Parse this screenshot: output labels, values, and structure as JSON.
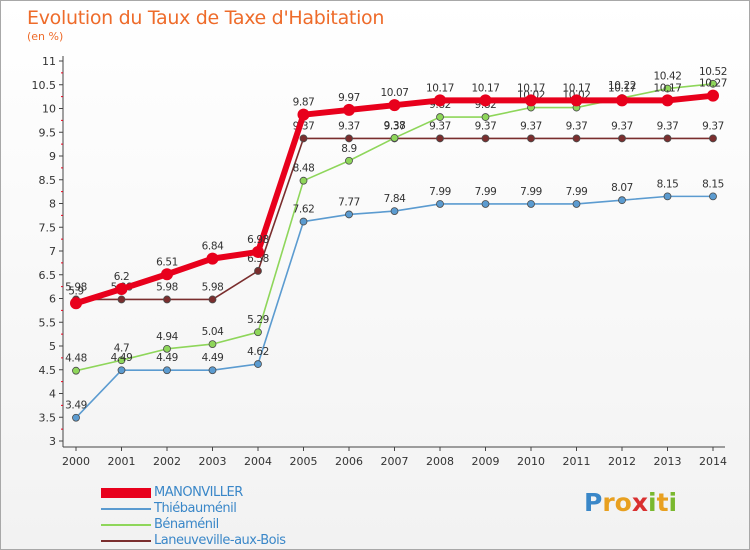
{
  "title": "Evolution du Taux de Taxe d'Habitation",
  "unit_label": "(en %)",
  "logo": {
    "letters": [
      "P",
      "r",
      "o",
      "x",
      "i",
      "t",
      "i"
    ],
    "colors": [
      "#3a87c8",
      "#e8a020",
      "#e8a020",
      "#d93030",
      "#7ab82e",
      "#e8a020",
      "#7ab82e"
    ]
  },
  "chart_data": {
    "type": "line",
    "title": "Evolution du Taux de Taxe d'Habitation",
    "ylabel": "(en %)",
    "xlabel": "",
    "x": [
      "2000",
      "2001",
      "2002",
      "2003",
      "2004",
      "2005",
      "2006",
      "2007",
      "2008",
      "2009",
      "2010",
      "2011",
      "2012",
      "2013",
      "2014"
    ],
    "ylim": [
      3,
      11
    ],
    "yticks": [
      "3",
      "3.5",
      "4",
      "4.5",
      "5",
      "5.5",
      "6",
      "6.5",
      "7",
      "7.5",
      "8",
      "8.5",
      "9",
      "9.5",
      "10",
      "10.5",
      "11"
    ],
    "grid": false,
    "legend": "bottom-left",
    "series": [
      {
        "name": "Laneuveville-aux-Bois",
        "color": "#7a2e2e",
        "values": [
          5.98,
          5.98,
          5.98,
          5.98,
          6.58,
          9.37,
          9.37,
          9.37,
          9.37,
          9.37,
          9.37,
          9.37,
          9.37,
          9.37,
          9.37
        ],
        "labels": [
          "5.98",
          "5.98",
          "5.98",
          "5.98",
          "6.58",
          "9.37",
          "9.37",
          "9.37",
          "9.37",
          "9.37",
          "9.37",
          "9.37",
          "9.37",
          "9.37",
          "9.37"
        ]
      },
      {
        "name": "Bénaménil",
        "color": "#8ed65a",
        "values": [
          4.48,
          4.7,
          4.94,
          5.04,
          5.29,
          8.48,
          8.9,
          9.38,
          9.82,
          9.82,
          10.02,
          10.02,
          10.22,
          10.42,
          10.52
        ],
        "labels": [
          "4.48",
          "4.7",
          "4.94",
          "5.04",
          "5.29",
          "8.48",
          "8.9",
          "9.38",
          "9.82",
          "9.82",
          "10.02",
          "10.02",
          "10.22",
          "10.42",
          "10.52"
        ]
      },
      {
        "name": "Thiébauménil",
        "color": "#5b9bd0",
        "values": [
          3.49,
          4.49,
          4.49,
          4.49,
          4.62,
          7.62,
          7.77,
          7.84,
          7.99,
          7.99,
          7.99,
          7.99,
          8.07,
          8.15,
          8.15
        ],
        "labels": [
          "3.49",
          "4.49",
          "4.49",
          "4.49",
          "4.62",
          "7.62",
          "7.77",
          "7.84",
          "7.99",
          "7.99",
          "7.99",
          "7.99",
          "8.07",
          "8.15",
          "8.15"
        ]
      },
      {
        "name": "MANONVILLER",
        "color": "#e8001c",
        "values": [
          5.9,
          6.2,
          6.51,
          6.84,
          6.98,
          9.87,
          9.97,
          10.07,
          10.17,
          10.17,
          10.17,
          10.17,
          10.17,
          10.17,
          10.27
        ],
        "labels": [
          "5.9",
          "6.2",
          "6.51",
          "6.84",
          "6.98",
          "9.87",
          "9.97",
          "10.07",
          "10.17",
          "10.17",
          "10.17",
          "10.17",
          "10.17",
          "10.17",
          "10.27"
        ]
      }
    ]
  },
  "legend_items": [
    {
      "name": "MANONVILLER",
      "color": "#e8001c",
      "thick": true
    },
    {
      "name": "Thiébauménil",
      "color": "#5b9bd0",
      "thick": false
    },
    {
      "name": "Bénaménil",
      "color": "#8ed65a",
      "thick": false
    },
    {
      "name": "Laneuveville-aux-Bois",
      "color": "#7a2e2e",
      "thick": false
    }
  ],
  "colors": {
    "title": "#ee6b2a",
    "axis": "#444444",
    "label": "#333333",
    "legend_text": "#3a87c8"
  }
}
